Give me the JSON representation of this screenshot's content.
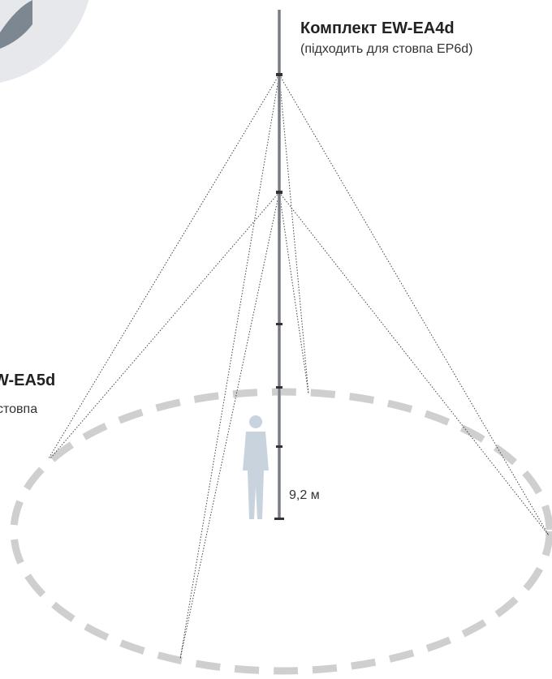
{
  "kit_main": {
    "title": "Комплект EW-EA4d",
    "note": "(підходить для стовпа EP6d)"
  },
  "kit_side": {
    "title": "W-EA5d",
    "note": "стовпа"
  },
  "height_label": "9,2 м"
}
